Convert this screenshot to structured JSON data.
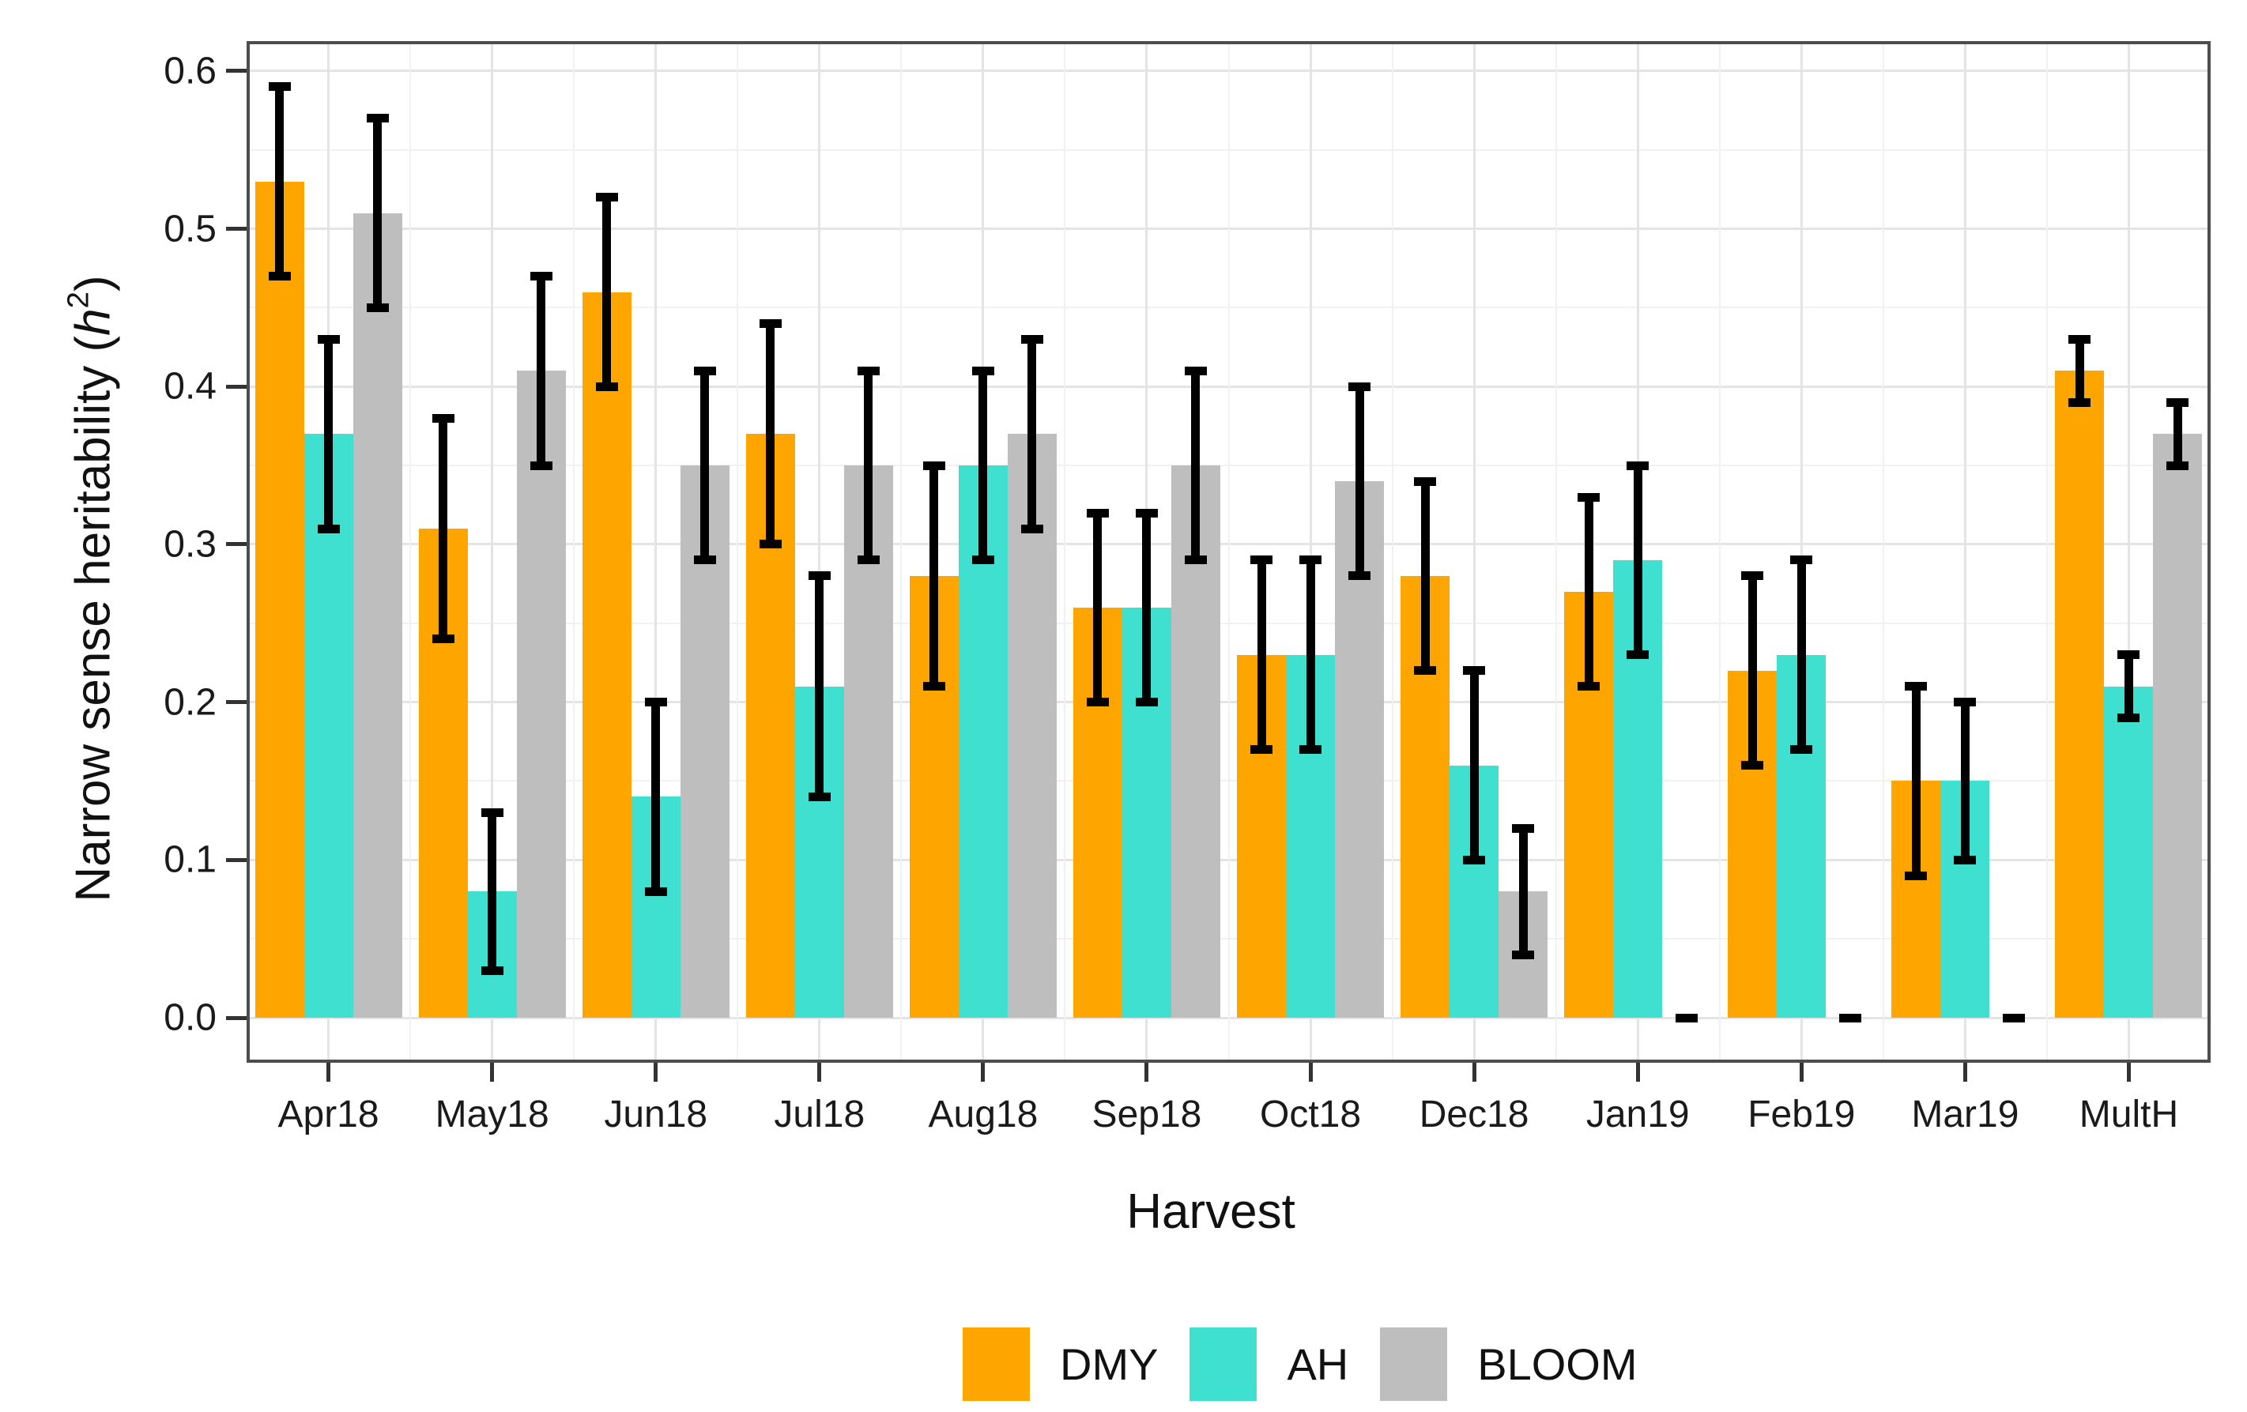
{
  "chart_data": {
    "type": "bar",
    "title": "",
    "xlabel": "Harvest",
    "ylabel": "Narrow sense heritability (h2)",
    "ylabel_parts": {
      "prefix": "Narrow sense heritability  (",
      "variable": "h",
      "superscript": "2",
      "suffix": ")"
    },
    "categories": [
      "Apr18",
      "May18",
      "Jun18",
      "Jul18",
      "Aug18",
      "Sep18",
      "Oct18",
      "Dec18",
      "Jan19",
      "Feb19",
      "Mar19",
      "MultH"
    ],
    "series": [
      {
        "name": "DMY",
        "color": "#FFA500",
        "values": [
          0.53,
          0.31,
          0.46,
          0.37,
          0.28,
          0.26,
          0.23,
          0.28,
          0.27,
          0.22,
          0.15,
          0.41
        ],
        "err_low": [
          0.47,
          0.24,
          0.4,
          0.3,
          0.21,
          0.2,
          0.17,
          0.22,
          0.21,
          0.16,
          0.09,
          0.39
        ],
        "err_high": [
          0.59,
          0.38,
          0.52,
          0.44,
          0.35,
          0.32,
          0.29,
          0.34,
          0.33,
          0.28,
          0.21,
          0.43
        ]
      },
      {
        "name": "AH",
        "color": "#40E0D0",
        "values": [
          0.37,
          0.08,
          0.14,
          0.21,
          0.35,
          0.26,
          0.23,
          0.16,
          0.29,
          0.23,
          0.15,
          0.21
        ],
        "err_low": [
          0.31,
          0.03,
          0.08,
          0.14,
          0.29,
          0.2,
          0.17,
          0.1,
          0.23,
          0.17,
          0.1,
          0.19
        ],
        "err_high": [
          0.43,
          0.13,
          0.2,
          0.28,
          0.41,
          0.32,
          0.29,
          0.22,
          0.35,
          0.29,
          0.2,
          0.23
        ]
      },
      {
        "name": "BLOOM",
        "color": "#BEBEBE",
        "values": [
          0.51,
          0.41,
          0.35,
          0.35,
          0.37,
          0.35,
          0.34,
          0.08,
          0.0,
          0.0,
          0.0,
          0.37
        ],
        "err_low": [
          0.45,
          0.35,
          0.29,
          0.29,
          0.31,
          0.29,
          0.28,
          0.04,
          0.0,
          0.0,
          0.0,
          0.35
        ],
        "err_high": [
          0.57,
          0.47,
          0.41,
          0.41,
          0.43,
          0.41,
          0.4,
          0.12,
          0.0,
          0.0,
          0.0,
          0.39
        ]
      }
    ],
    "ylim": [
      0,
      0.6
    ],
    "yticks": [
      0.0,
      0.1,
      0.2,
      0.3,
      0.4,
      0.5,
      0.6
    ],
    "ytick_labels": [
      "0.0",
      "0.1",
      "0.2",
      "0.3",
      "0.4",
      "0.5",
      "0.6"
    ],
    "grid": "horizontal major 0.1 + minor 0.05, vertical at category centers and boundaries, light gray on white",
    "legend_position": "bottom-center",
    "error_bar_color": "#000000",
    "panel_border_color": "#4d4d4d"
  },
  "legend": {
    "items": [
      {
        "label": "DMY",
        "color": "#FFA500"
      },
      {
        "label": "AH",
        "color": "#40E0D0"
      },
      {
        "label": "BLOOM",
        "color": "#BEBEBE"
      }
    ]
  }
}
